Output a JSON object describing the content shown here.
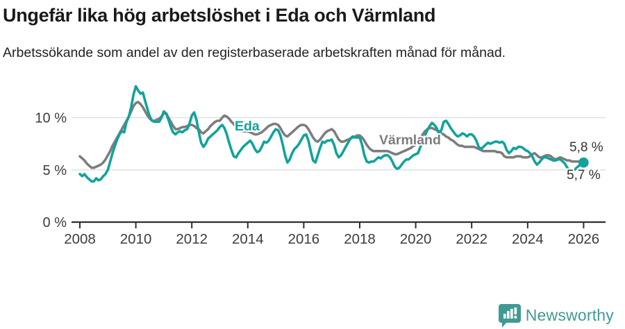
{
  "page": {
    "title": "Ungefär lika hög arbetslöshet i Eda och Värmland",
    "subtitle": "Arbetssökande som andel av den registerbaserade arbetskraften månad för månad."
  },
  "footer": {
    "brand": "Newsworthy",
    "brand_color": "#3f9a94",
    "logo_icon": "newsworthy-speech-bubble-bar-chart-icon"
  },
  "chart_data": {
    "type": "line",
    "title": "Ungefär lika hög arbetslöshet i Eda och Värmland",
    "subtitle": "Arbetssökande som andel av den registerbaserade arbetskraften månad för månad.",
    "x_interval": "monthly",
    "x_start": "2008-01",
    "x_end": "2026-01",
    "xticks": [
      2008,
      2010,
      2012,
      2014,
      2016,
      2018,
      2020,
      2022,
      2024,
      2026
    ],
    "yticks": [
      0,
      5,
      10
    ],
    "ytick_labels": [
      "0 %",
      "5 %",
      "10 %"
    ],
    "ylim": [
      0,
      13.5
    ],
    "grid": "horizontal",
    "legend_position": "inline-labels",
    "colors": {
      "eda": "#10a39c",
      "varmland": "#7d7d7d",
      "axis": "#2e2e2e",
      "grid": "#e0e0e0",
      "value_label": "#333333"
    },
    "series": [
      {
        "name": "Värmland",
        "slug": "varmland",
        "color": "#7d7d7d",
        "end_label": "5,8 %",
        "end_dot": false,
        "values": [
          6.3,
          6.1,
          5.9,
          5.6,
          5.4,
          5.2,
          5.2,
          5.3,
          5.4,
          5.5,
          5.7,
          6.0,
          6.4,
          6.8,
          7.3,
          7.7,
          8.1,
          8.5,
          8.9,
          9.3,
          9.7,
          10.1,
          10.6,
          11.1,
          11.4,
          11.5,
          11.3,
          11.0,
          10.6,
          10.2,
          9.9,
          9.7,
          9.7,
          9.8,
          9.9,
          10.1,
          10.4,
          10.4,
          10.0,
          9.6,
          9.2,
          8.9,
          8.9,
          9.0,
          9.1,
          9.1,
          9.2,
          9.3,
          9.3,
          9.2,
          9.0,
          8.9,
          8.6,
          8.5,
          8.7,
          8.9,
          9.2,
          9.4,
          9.6,
          9.7,
          9.7,
          10.0,
          10.2,
          10.1,
          9.9,
          9.6,
          9.4,
          9.1,
          8.9,
          8.8,
          8.7,
          8.7,
          8.7,
          8.6,
          8.5,
          8.4,
          8.4,
          8.5,
          8.6,
          8.8,
          9.0,
          9.2,
          9.3,
          9.4,
          9.4,
          9.3,
          9.0,
          8.6,
          8.3,
          8.2,
          8.4,
          8.6,
          8.8,
          9.0,
          9.2,
          9.3,
          9.3,
          9.2,
          8.9,
          8.5,
          8.1,
          7.8,
          7.7,
          7.9,
          8.2,
          8.5,
          8.7,
          8.8,
          8.9,
          8.7,
          8.3,
          7.9,
          7.7,
          7.7,
          7.8,
          7.9,
          8.0,
          8.1,
          8.2,
          8.3,
          8.3,
          8.1,
          7.8,
          7.4,
          7.1,
          6.9,
          6.8,
          6.8,
          6.8,
          6.8,
          6.8,
          6.8,
          6.8,
          6.7,
          6.6,
          6.5,
          6.5,
          6.6,
          6.7,
          6.8,
          6.9,
          7.0,
          7.1,
          7.3,
          7.4,
          7.6,
          8.0,
          8.4,
          8.7,
          8.9,
          9.0,
          9.0,
          8.9,
          8.8,
          8.7,
          8.5,
          8.4,
          8.2,
          8.1,
          7.9,
          7.8,
          7.6,
          7.4,
          7.3,
          7.3,
          7.2,
          7.2,
          7.2,
          7.2,
          7.2,
          7.1,
          7.0,
          6.9,
          6.8,
          6.8,
          6.8,
          6.8,
          6.8,
          6.8,
          6.7,
          6.7,
          6.6,
          6.3,
          6.2,
          6.2,
          6.2,
          6.2,
          6.3,
          6.3,
          6.3,
          6.2,
          6.2,
          6.2,
          6.3,
          6.5,
          6.6,
          6.4,
          6.2,
          6.2,
          6.3,
          6.4,
          6.4,
          6.3,
          6.1,
          6.0,
          6.1,
          6.2,
          6.1,
          6.0,
          5.9,
          5.9,
          5.8,
          5.8,
          5.8,
          5.8,
          5.8,
          5.8
        ]
      },
      {
        "name": "Eda",
        "slug": "eda",
        "color": "#10a39c",
        "end_label": "5,7 %",
        "end_dot": true,
        "values": [
          4.6,
          4.4,
          4.6,
          4.3,
          4.1,
          3.9,
          3.9,
          4.2,
          4.0,
          4.1,
          4.4,
          4.6,
          5.0,
          5.8,
          6.6,
          7.3,
          7.9,
          8.4,
          8.7,
          8.6,
          9.6,
          10.1,
          11.0,
          12.2,
          13.0,
          12.6,
          12.3,
          12.4,
          11.6,
          10.8,
          10.1,
          9.7,
          9.6,
          9.6,
          9.6,
          10.0,
          10.6,
          10.4,
          9.8,
          9.1,
          8.6,
          8.4,
          8.6,
          8.7,
          8.6,
          8.8,
          8.9,
          9.4,
          10.2,
          10.5,
          9.8,
          8.6,
          7.6,
          7.2,
          7.5,
          8.0,
          8.2,
          8.4,
          8.6,
          8.8,
          9.1,
          9.3,
          9.0,
          8.4,
          7.6,
          6.9,
          6.3,
          6.2,
          6.6,
          6.9,
          7.2,
          7.4,
          7.6,
          7.8,
          7.5,
          7.0,
          6.7,
          6.8,
          7.2,
          7.7,
          7.6,
          7.8,
          8.2,
          8.6,
          8.9,
          8.8,
          8.3,
          7.4,
          6.4,
          5.7,
          6.0,
          6.6,
          7.0,
          7.2,
          7.5,
          7.9,
          8.3,
          8.4,
          7.8,
          6.8,
          5.9,
          5.7,
          6.4,
          7.1,
          7.7,
          7.6,
          7.8,
          7.8,
          7.9,
          7.4,
          6.6,
          6.2,
          6.4,
          6.8,
          7.2,
          7.6,
          8.0,
          8.2,
          8.1,
          8.1,
          8.1,
          7.4,
          6.4,
          5.8,
          5.7,
          5.8,
          5.8,
          6.0,
          6.2,
          6.1,
          6.3,
          6.4,
          6.4,
          6.2,
          5.8,
          5.3,
          5.1,
          5.2,
          5.5,
          5.8,
          6.0,
          6.0,
          6.2,
          6.4,
          6.5,
          6.6,
          7.2,
          7.7,
          8.3,
          8.8,
          9.2,
          9.5,
          9.3,
          9.0,
          8.5,
          8.8,
          9.6,
          9.7,
          9.4,
          9.0,
          8.7,
          8.4,
          8.2,
          8.3,
          8.5,
          8.4,
          8.2,
          8.4,
          8.4,
          8.2,
          7.8,
          7.2,
          7.0,
          7.2,
          7.4,
          7.6,
          7.5,
          7.6,
          7.7,
          7.7,
          7.6,
          7.7,
          7.5,
          6.9,
          6.6,
          6.8,
          7.1,
          7.0,
          7.2,
          7.2,
          7.1,
          6.9,
          6.8,
          6.6,
          6.3,
          5.8,
          5.5,
          5.7,
          6.0,
          6.2,
          6.2,
          6.1,
          6.0,
          5.9,
          5.9,
          6.0,
          6.0,
          5.8,
          5.6,
          5.2,
          4.9,
          4.9,
          5.0,
          5.2,
          5.4,
          5.6,
          5.7
        ]
      }
    ]
  }
}
